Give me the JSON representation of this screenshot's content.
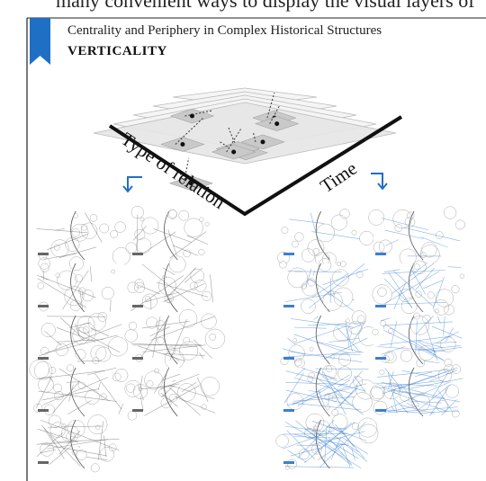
{
  "header": {
    "running_text": "many convenient ways to display the visual layers of",
    "title": "Centrality and Periphery in Complex Historical Structures",
    "subtitle": "VERTICALITY"
  },
  "figure": {
    "axis_labels": {
      "left": "Type of relation",
      "right": "Time"
    }
  }
}
